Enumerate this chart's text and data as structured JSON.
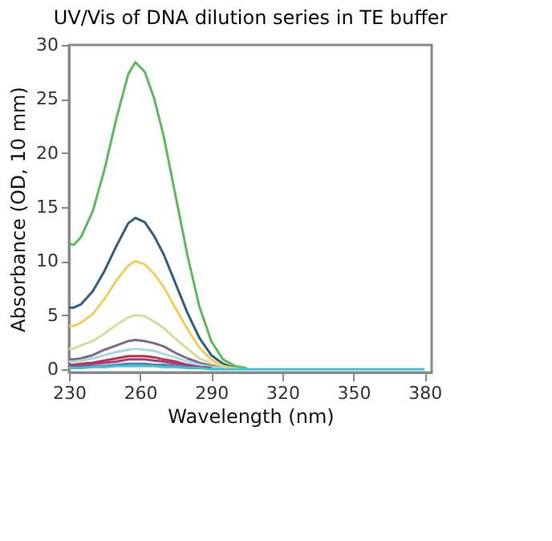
{
  "chart_data": {
    "type": "line",
    "title": "UV/Vis of DNA dilution series in TE buffer",
    "xlabel": "Wavelength (nm)",
    "ylabel": "Absorbance (OD, 10 mm)",
    "x": [
      230,
      232,
      235,
      240,
      245,
      250,
      255,
      258,
      262,
      266,
      270,
      275,
      280,
      285,
      290,
      295,
      300,
      305,
      320,
      350,
      380
    ],
    "xlim": [
      230,
      383
    ],
    "xticks": [
      230,
      260,
      290,
      320,
      350,
      380
    ],
    "ylim": [
      -0.3,
      30
    ],
    "yticks": [
      0,
      5,
      10,
      15,
      20,
      25,
      30
    ],
    "grid": false,
    "legend": false,
    "marker": "none",
    "line_style": "solid",
    "series": [
      {
        "color": "#5fb85a",
        "values": [
          11.6,
          11.5,
          12.2,
          14.6,
          18.5,
          23.2,
          27.3,
          28.4,
          27.5,
          25.0,
          21.5,
          16.0,
          10.5,
          5.8,
          2.6,
          0.9,
          0.3,
          0.1,
          null,
          null,
          null
        ]
      },
      {
        "color": "#2f5f80",
        "values": [
          5.7,
          5.7,
          6.0,
          7.2,
          9.1,
          11.4,
          13.5,
          14.0,
          13.6,
          12.3,
          10.6,
          7.9,
          5.2,
          2.9,
          1.3,
          0.5,
          0.1,
          null,
          null,
          null,
          null
        ]
      },
      {
        "color": "#f0cd5a",
        "values": [
          4.0,
          4.0,
          4.3,
          5.1,
          6.5,
          8.2,
          9.6,
          10.0,
          9.7,
          8.8,
          7.6,
          5.6,
          3.7,
          2.0,
          0.9,
          0.3,
          0.1,
          null,
          null,
          null,
          null
        ]
      },
      {
        "color": "#d5dc95",
        "values": [
          1.9,
          1.9,
          2.2,
          2.6,
          3.3,
          4.1,
          4.8,
          5.0,
          4.9,
          4.4,
          3.8,
          2.8,
          1.9,
          1.0,
          0.5,
          0.2,
          null,
          null,
          null,
          null,
          null
        ]
      },
      {
        "color": "#7a6a8c",
        "values": [
          0.9,
          0.9,
          1.0,
          1.3,
          1.8,
          2.2,
          2.6,
          2.7,
          2.6,
          2.4,
          2.1,
          1.5,
          1.0,
          0.6,
          0.3,
          0.1,
          null,
          null,
          null,
          null,
          null
        ]
      },
      {
        "color": "#a8d8e0",
        "values": [
          0.7,
          0.7,
          0.8,
          1.0,
          1.3,
          1.6,
          1.8,
          1.9,
          1.8,
          1.7,
          1.4,
          1.1,
          0.7,
          0.4,
          0.2,
          0.1,
          null,
          null,
          null,
          null,
          null
        ]
      },
      {
        "color": "#c0304a",
        "values": [
          0.4,
          0.4,
          0.5,
          0.6,
          0.8,
          1.0,
          1.2,
          1.2,
          1.2,
          1.1,
          0.9,
          0.7,
          0.4,
          0.2,
          0.1,
          null,
          null,
          null,
          null,
          null,
          null
        ]
      },
      {
        "color": "#a04080",
        "values": [
          0.3,
          0.3,
          0.3,
          0.5,
          0.6,
          0.7,
          0.9,
          0.9,
          0.9,
          0.8,
          0.7,
          0.5,
          0.3,
          0.2,
          0.1,
          null,
          null,
          null,
          null,
          null,
          null
        ]
      },
      {
        "color": "#4a80c0",
        "values": [
          0.2,
          0.2,
          0.2,
          0.3,
          0.3,
          0.4,
          0.5,
          0.5,
          0.5,
          0.4,
          0.4,
          0.3,
          0.2,
          0.1,
          null,
          null,
          null,
          null,
          null,
          null,
          null
        ]
      },
      {
        "color": "#40c0d0",
        "values": [
          0.1,
          0.1,
          0.1,
          0.2,
          0.2,
          0.3,
          0.3,
          0.3,
          0.3,
          0.3,
          0.2,
          0.2,
          0.1,
          0.1,
          0,
          0,
          0,
          0,
          0,
          0,
          0
        ]
      }
    ]
  }
}
